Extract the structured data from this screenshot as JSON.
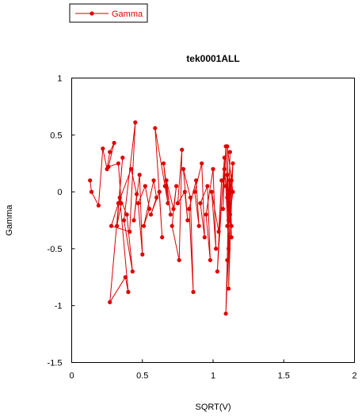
{
  "chart_data": {
    "type": "line",
    "title": "tek0001ALL",
    "xlabel": "SQRT(V)",
    "ylabel": "Gamma",
    "xlim": [
      0,
      2
    ],
    "ylim": [
      -1.5,
      1
    ],
    "x_ticks": [
      0,
      0.5,
      1,
      1.5,
      2
    ],
    "x_tick_labels": [
      "0",
      "0.5",
      "1",
      "1.5",
      "2"
    ],
    "y_ticks": [
      1,
      0.5,
      0,
      -0.5,
      -1,
      -1.5
    ],
    "y_tick_labels": [
      "1",
      "0.5",
      "0",
      "-0.5",
      "-1",
      "-1.5"
    ],
    "grid": false,
    "legend_position": "top-left",
    "series": [
      {
        "name": "Gamma",
        "color": "#dd0000",
        "x": [
          0.13,
          0.14,
          0.19,
          0.22,
          0.25,
          0.27,
          0.3,
          0.26,
          0.33,
          0.35,
          0.32,
          0.36,
          0.27,
          0.38,
          0.4,
          0.34,
          0.39,
          0.43,
          0.37,
          0.45,
          0.41,
          0.28,
          0.33,
          0.42,
          0.46,
          0.44,
          0.48,
          0.5,
          0.47,
          0.52,
          0.55,
          0.51,
          0.58,
          0.6,
          0.56,
          0.62,
          0.64,
          0.59,
          0.66,
          0.68,
          0.65,
          0.7,
          0.67,
          0.72,
          0.74,
          0.71,
          0.76,
          0.78,
          0.75,
          0.8,
          0.82,
          0.79,
          0.84,
          0.86,
          0.83,
          0.88,
          0.9,
          0.87,
          0.92,
          0.94,
          0.91,
          0.96,
          0.98,
          0.95,
          1.0,
          1.02,
          0.99,
          1.04,
          1.06,
          1.03,
          1.08,
          1.07,
          1.09,
          1.1,
          1.08,
          1.11,
          1.12,
          1.09,
          1.13,
          1.1,
          1.14,
          1.11,
          1.12,
          1.13,
          1.1,
          1.11,
          1.09,
          1.12,
          1.14,
          1.1,
          1.11,
          1.13,
          1.12,
          1.1,
          1.11
        ],
        "y": [
          0.1,
          0.0,
          -0.12,
          0.38,
          0.2,
          0.35,
          0.43,
          0.22,
          0.25,
          -0.1,
          -0.3,
          0.3,
          -0.97,
          -0.75,
          -0.88,
          -0.05,
          -0.2,
          -0.7,
          -0.25,
          0.61,
          -0.35,
          -0.3,
          -0.1,
          0.2,
          -0.02,
          -0.25,
          0.15,
          -0.55,
          -0.1,
          0.05,
          -0.15,
          -0.3,
          0.1,
          -0.05,
          -0.2,
          0.0,
          -0.4,
          0.56,
          0.05,
          -0.1,
          0.25,
          -0.2,
          0.1,
          -0.15,
          0.05,
          -0.3,
          -0.6,
          0.37,
          -0.1,
          0.0,
          -0.25,
          0.2,
          -0.05,
          -0.88,
          -0.15,
          0.1,
          -0.3,
          0.0,
          0.25,
          -0.4,
          -0.1,
          0.05,
          -0.6,
          -0.2,
          0.2,
          -0.5,
          0.0,
          -0.35,
          0.1,
          -0.7,
          0.3,
          -0.15,
          0.4,
          -0.05,
          0.2,
          -0.25,
          0.35,
          -1.07,
          0.1,
          -0.3,
          0.25,
          -0.85,
          0.0,
          -0.4,
          0.15,
          -0.5,
          0.05,
          -0.2,
          0.0,
          0.4,
          -0.1,
          -0.3,
          0.1,
          -0.6,
          0.0
        ]
      }
    ]
  }
}
